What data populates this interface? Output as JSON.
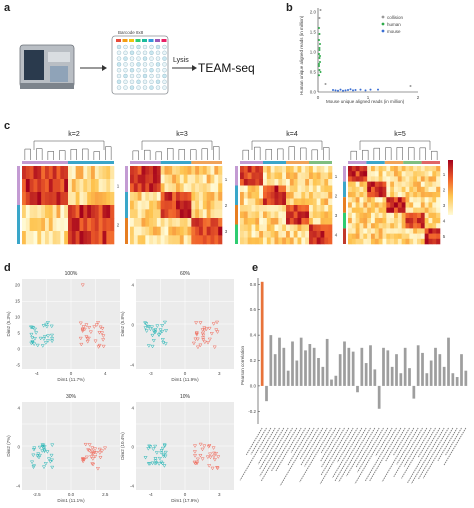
{
  "panels": {
    "a": {
      "letter": "a",
      "plate_label": "Barcode 8x8",
      "lysis_label": "Lysis",
      "result_label": "TEAM-seq"
    },
    "b": {
      "letter": "b",
      "xlabel": "Mouse unique aligned reads (in million)",
      "ylabel": "Human unique aligned reads (in million)",
      "legend": [
        "collision",
        "human",
        "mouse"
      ],
      "xticks": [
        "0",
        "1",
        "2"
      ],
      "yticks": [
        "0.0",
        "0.5",
        "1.0",
        "1.5",
        "2.0"
      ]
    },
    "c": {
      "letter": "c",
      "titles": [
        "k=2",
        "k=3",
        "k=4",
        "k=5"
      ],
      "row_labels": [
        [
          "1",
          "2"
        ],
        [
          "1",
          "2",
          "3"
        ],
        [
          "1",
          "2",
          "3",
          "4"
        ],
        [
          "1",
          "2",
          "3",
          "4",
          "5"
        ]
      ]
    },
    "d": {
      "letter": "d",
      "titles": [
        "100%",
        "60%",
        "30%",
        "10%"
      ],
      "xlabels": [
        "Dim1 (11.7%)",
        "Dim1 (11.9%)",
        "Dim1 (11.1%)",
        "Dim1 (17.9%)"
      ],
      "ylabels": [
        "Dim2 (5.3%)",
        "Dim2 (5.8%)",
        "Dim2 (7%)",
        "Dim2 (10.4%)"
      ],
      "xticks": [
        [
          "-4",
          "0",
          "4"
        ],
        [
          "-3",
          "0",
          "3"
        ],
        [
          "-2.5",
          "0.0",
          "2.5"
        ],
        [
          "-4",
          "0",
          "3"
        ]
      ],
      "yticks": [
        [
          "20",
          "15",
          "10",
          "5",
          "0",
          "-5"
        ],
        [
          "4",
          "0",
          "-4"
        ],
        [
          "4",
          "0",
          "-4"
        ],
        [
          "4",
          "0",
          "-4"
        ]
      ]
    },
    "e": {
      "letter": "e",
      "ylabel": "Pearson correlation",
      "yticks": [
        "0.8",
        "0.6",
        "0.4",
        "0.2",
        "0.0",
        "-0.2"
      ]
    }
  },
  "chart_data": [
    {
      "type": "scatter",
      "panel": "b",
      "xlabel": "Mouse unique aligned reads (in million)",
      "ylabel": "Human unique aligned reads (in million)",
      "xlim": [
        0,
        2
      ],
      "ylim": [
        0,
        2.1
      ],
      "series": [
        {
          "name": "collision",
          "color": "#999999",
          "points": [
            [
              0.05,
              2.05
            ],
            [
              0.03,
              1.85
            ],
            [
              1.85,
              0.15
            ],
            [
              0.15,
              0.2
            ]
          ]
        },
        {
          "name": "human",
          "color": "#2eaa4a",
          "points": [
            [
              0.02,
              1.6
            ],
            [
              0.03,
              1.45
            ],
            [
              0.02,
              1.3
            ],
            [
              0.04,
              1.2
            ],
            [
              0.03,
              1.05
            ],
            [
              0.02,
              0.95
            ],
            [
              0.03,
              0.85
            ],
            [
              0.04,
              0.75
            ],
            [
              0.02,
              0.65
            ],
            [
              0.03,
              0.55
            ],
            [
              0.05,
              0.5
            ],
            [
              0.02,
              0.42
            ],
            [
              0.03,
              1.1
            ],
            [
              0.04,
              0.9
            ],
            [
              0.02,
              0.7
            ]
          ]
        },
        {
          "name": "mouse",
          "color": "#3b6fd4",
          "points": [
            [
              0.3,
              0.05
            ],
            [
              0.45,
              0.06
            ],
            [
              0.55,
              0.04
            ],
            [
              0.65,
              0.07
            ],
            [
              0.75,
              0.05
            ],
            [
              0.85,
              0.06
            ],
            [
              0.95,
              0.04
            ],
            [
              1.05,
              0.06
            ],
            [
              0.4,
              0.03
            ],
            [
              0.6,
              0.05
            ],
            [
              1.2,
              0.06
            ],
            [
              0.35,
              0.04
            ],
            [
              0.5,
              0.03
            ],
            [
              0.7,
              0.04
            ]
          ]
        }
      ]
    },
    {
      "type": "bar",
      "panel": "e",
      "ylabel": "Pearson correlation",
      "ylim": [
        -0.3,
        0.85
      ],
      "highlight_color": "#e8733a",
      "bar_color": "#9e9e9e",
      "values": [
        0.82,
        -0.12,
        0.4,
        0.25,
        0.38,
        0.3,
        0.12,
        0.35,
        0.2,
        0.38,
        0.28,
        0.33,
        0.3,
        0.22,
        0.15,
        0.37,
        0.05,
        0.08,
        0.25,
        0.35,
        0.3,
        0.27,
        -0.05,
        0.3,
        0.18,
        0.32,
        0.13,
        -0.18,
        0.3,
        0.28,
        0.15,
        0.25,
        0.1,
        0.3,
        0.14,
        -0.1,
        0.32,
        0.26,
        0.1,
        0.2,
        0.3,
        0.25,
        0.15,
        0.38,
        0.1,
        0.07,
        0.25,
        0.12
      ]
    }
  ]
}
